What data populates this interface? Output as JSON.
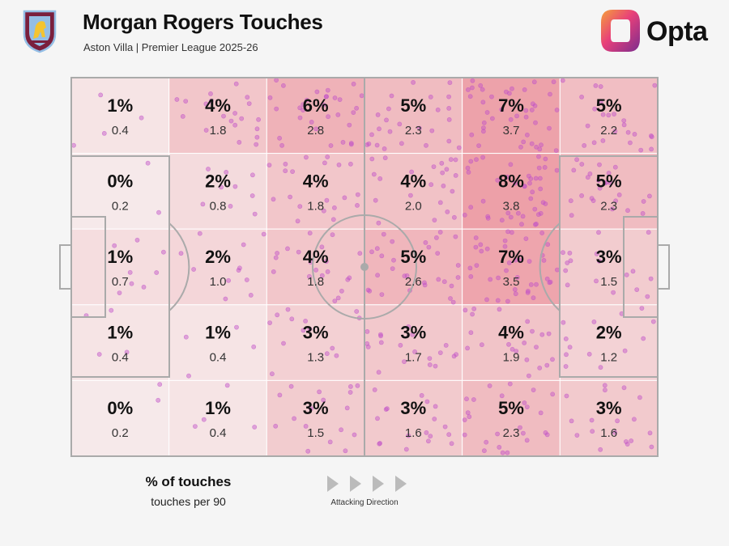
{
  "header": {
    "title": "Morgan Rogers Touches",
    "subtitle": "Aston Villa | Premier League 2025-26",
    "brand": "Opta"
  },
  "legend": {
    "title": "% of touches",
    "subtitle": "touches per 90",
    "direction_label": "Attacking Direction"
  },
  "colors": {
    "background": "#f5f5f5",
    "pitch_lines": "#aaaaaa",
    "heat_low": "#f7f0f0",
    "heat_high": "#eda0a8",
    "touch_dot": "#c050c8",
    "crest_claret": "#7a1f3d",
    "crest_blue": "#94bee5",
    "crest_gold": "#f4c430",
    "opta_orange": "#f28a2e",
    "opta_purple": "#7b2d8e"
  },
  "chart_data": {
    "type": "heatmap",
    "rows": 5,
    "cols": 6,
    "metric_primary": "% of touches",
    "metric_secondary": "touches per 90",
    "attacking_direction": "left-to-right",
    "cells": [
      [
        {
          "pct": "1%",
          "p90": "0.4"
        },
        {
          "pct": "4%",
          "p90": "1.8"
        },
        {
          "pct": "6%",
          "p90": "2.8"
        },
        {
          "pct": "5%",
          "p90": "2.3"
        },
        {
          "pct": "7%",
          "p90": "3.7"
        },
        {
          "pct": "5%",
          "p90": "2.2"
        }
      ],
      [
        {
          "pct": "0%",
          "p90": "0.2"
        },
        {
          "pct": "2%",
          "p90": "0.8"
        },
        {
          "pct": "4%",
          "p90": "1.8"
        },
        {
          "pct": "4%",
          "p90": "2.0"
        },
        {
          "pct": "8%",
          "p90": "3.8"
        },
        {
          "pct": "5%",
          "p90": "2.3"
        }
      ],
      [
        {
          "pct": "1%",
          "p90": "0.7"
        },
        {
          "pct": "2%",
          "p90": "1.0"
        },
        {
          "pct": "4%",
          "p90": "1.8"
        },
        {
          "pct": "5%",
          "p90": "2.6"
        },
        {
          "pct": "7%",
          "p90": "3.5"
        },
        {
          "pct": "3%",
          "p90": "1.5"
        }
      ],
      [
        {
          "pct": "1%",
          "p90": "0.4"
        },
        {
          "pct": "1%",
          "p90": "0.4"
        },
        {
          "pct": "3%",
          "p90": "1.3"
        },
        {
          "pct": "3%",
          "p90": "1.7"
        },
        {
          "pct": "4%",
          "p90": "1.9"
        },
        {
          "pct": "2%",
          "p90": "1.2"
        }
      ],
      [
        {
          "pct": "0%",
          "p90": "0.2"
        },
        {
          "pct": "1%",
          "p90": "0.4"
        },
        {
          "pct": "3%",
          "p90": "1.5"
        },
        {
          "pct": "3%",
          "p90": "1.6"
        },
        {
          "pct": "5%",
          "p90": "2.3"
        },
        {
          "pct": "3%",
          "p90": "1.6"
        }
      ]
    ]
  }
}
